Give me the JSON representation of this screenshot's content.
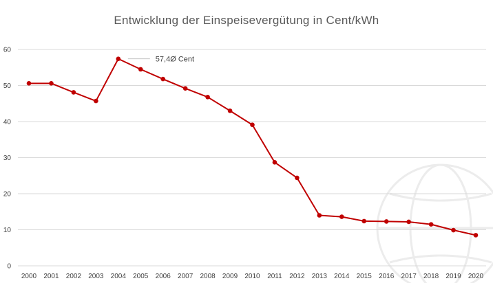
{
  "chart_data": {
    "type": "line",
    "title": "Entwicklung der Einspeisevergütung in Cent/kWh",
    "xlabel": "",
    "ylabel": "",
    "categories": [
      "2000",
      "2001",
      "2002",
      "2003",
      "2004",
      "2005",
      "2006",
      "2007",
      "2008",
      "2009",
      "2010",
      "2011",
      "2012",
      "2013",
      "2014",
      "2015",
      "2016",
      "2017",
      "2018",
      "2019",
      "2020"
    ],
    "series": [
      {
        "color": "#c00000",
        "values": [
          50.6,
          50.6,
          48.1,
          45.7,
          57.4,
          54.5,
          51.8,
          49.2,
          46.8,
          43.0,
          39.1,
          28.7,
          24.4,
          14.0,
          13.6,
          12.4,
          12.3,
          12.2,
          11.5,
          9.9,
          8.5
        ]
      }
    ],
    "ylim": [
      0,
      60
    ],
    "yticks": [
      0,
      10,
      20,
      30,
      40,
      50,
      60
    ],
    "grid": true,
    "legend": "none",
    "annotations": [
      {
        "index": 4,
        "text": "57,4Ø Cent"
      }
    ]
  }
}
